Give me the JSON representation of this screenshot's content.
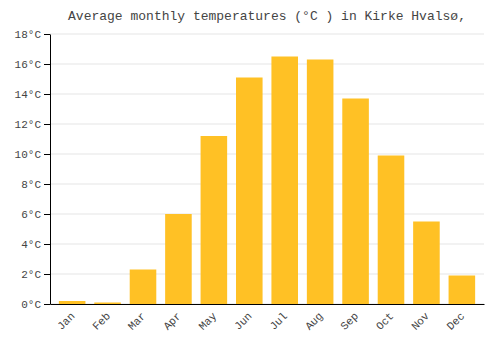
{
  "chart_data": {
    "type": "bar",
    "title": "Average monthly temperatures (°C ) in Kirke Hvalsø,",
    "categories": [
      "Jan",
      "Feb",
      "Mar",
      "Apr",
      "May",
      "Jun",
      "Jul",
      "Aug",
      "Sep",
      "Oct",
      "Nov",
      "Dec"
    ],
    "values": [
      0.2,
      0.1,
      2.3,
      6.0,
      11.2,
      15.1,
      16.5,
      16.3,
      13.7,
      9.9,
      5.5,
      1.9
    ],
    "color": "#FFC125",
    "ylim": [
      0,
      18
    ],
    "yticks": [
      {
        "value": 0,
        "label": "0°C"
      },
      {
        "value": 2,
        "label": "2°C"
      },
      {
        "value": 4,
        "label": "4°C"
      },
      {
        "value": 6,
        "label": "6°C"
      },
      {
        "value": 8,
        "label": "8°C"
      },
      {
        "value": 10,
        "label": "10°C"
      },
      {
        "value": 12,
        "label": "12°C"
      },
      {
        "value": 14,
        "label": "14°C"
      },
      {
        "value": 16,
        "label": "16°C"
      },
      {
        "value": 18,
        "label": "18°C"
      }
    ],
    "grid": true
  }
}
